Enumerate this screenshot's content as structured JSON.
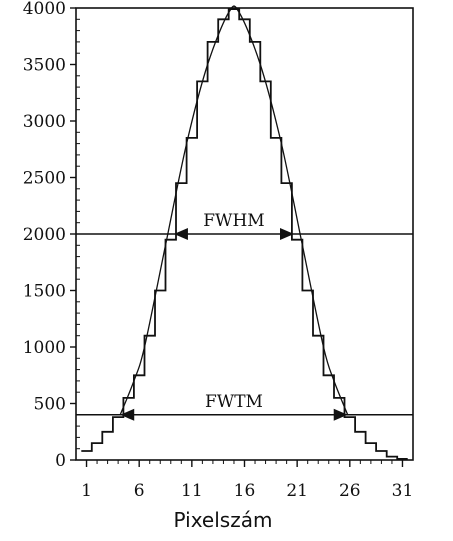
{
  "chart_data": {
    "type": "line",
    "title": "",
    "xlabel": "Pixelszám",
    "ylabel": "",
    "xlim": [
      0,
      32
    ],
    "ylim": [
      0,
      4000
    ],
    "x_ticks": [
      1,
      6,
      11,
      16,
      21,
      26,
      31
    ],
    "y_ticks": [
      0,
      500,
      1000,
      1500,
      2000,
      2500,
      3000,
      3500,
      4000
    ],
    "grid": false,
    "legend": "none",
    "series": [
      {
        "style": "step",
        "x": [
          1,
          2,
          3,
          4,
          5,
          6,
          7,
          8,
          9,
          10,
          11,
          12,
          13,
          14,
          15,
          16,
          17,
          18,
          19,
          20,
          21,
          22,
          23,
          24,
          25,
          26,
          27,
          28,
          29,
          30,
          31
        ],
        "values": [
          80,
          150,
          250,
          380,
          550,
          750,
          1100,
          1500,
          1950,
          2450,
          2850,
          3350,
          3700,
          3900,
          3990,
          3900,
          3700,
          3350,
          2850,
          2450,
          1950,
          1500,
          1100,
          750,
          550,
          380,
          250,
          150,
          80,
          30,
          10
        ]
      },
      {
        "style": "smooth",
        "x": [
          4.2,
          5.5,
          6.5,
          8.5,
          10.5,
          12.5,
          14.5,
          15.5,
          17.5,
          19.5,
          21.5,
          23.5,
          24.5,
          25.8
        ],
        "values": [
          400,
          700,
          1000,
          1900,
          2800,
          3500,
          3960,
          3960,
          3500,
          2800,
          1900,
          1000,
          700,
          400
        ]
      }
    ],
    "annotations": [
      {
        "label": "FWHM",
        "y": 2000,
        "from_x": 9.3,
        "to_x": 20.7
      },
      {
        "label": "FWTM",
        "y": 400,
        "from_x": 4.2,
        "to_x": 25.8
      }
    ]
  }
}
